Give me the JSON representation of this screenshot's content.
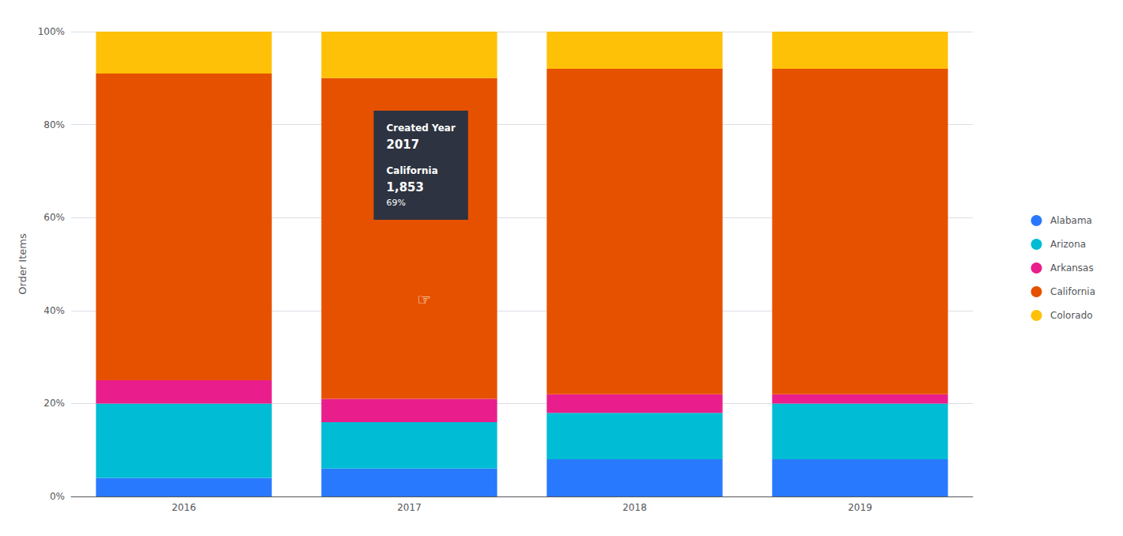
{
  "chart_data": {
    "type": "bar",
    "stacked": true,
    "categories": [
      "2016",
      "2017",
      "2018",
      "2019"
    ],
    "series": [
      {
        "name": "Alabama",
        "color": "#2979FF",
        "values": [
          4,
          6,
          8,
          8
        ]
      },
      {
        "name": "Arizona",
        "color": "#00BCD4",
        "values": [
          16,
          10,
          10,
          12
        ]
      },
      {
        "name": "Arkansas",
        "color": "#E91E8C",
        "values": [
          5,
          5,
          4,
          2
        ]
      },
      {
        "name": "California",
        "color": "#E65100",
        "values": [
          66,
          69,
          70,
          70
        ]
      },
      {
        "name": "Colorado",
        "color": "#FFC107",
        "values": [
          9,
          10,
          8,
          8
        ]
      }
    ],
    "ylabel": "Order Items",
    "ylim": [
      0,
      100
    ],
    "yticks": [
      {
        "value": 0,
        "label": "0%"
      },
      {
        "value": 20,
        "label": "20%"
      },
      {
        "value": 40,
        "label": "40%"
      },
      {
        "value": 60,
        "label": "60%"
      },
      {
        "value": 80,
        "label": "80%"
      },
      {
        "value": 100,
        "label": "100%"
      }
    ],
    "grid": true,
    "legend": "right",
    "annotations": [
      {
        "x": "2017",
        "text": [
          "Created Year",
          "2017",
          "California",
          "1,853",
          "69%"
        ]
      },
      {
        "x": "2017",
        "text": "☞"
      }
    ]
  }
}
